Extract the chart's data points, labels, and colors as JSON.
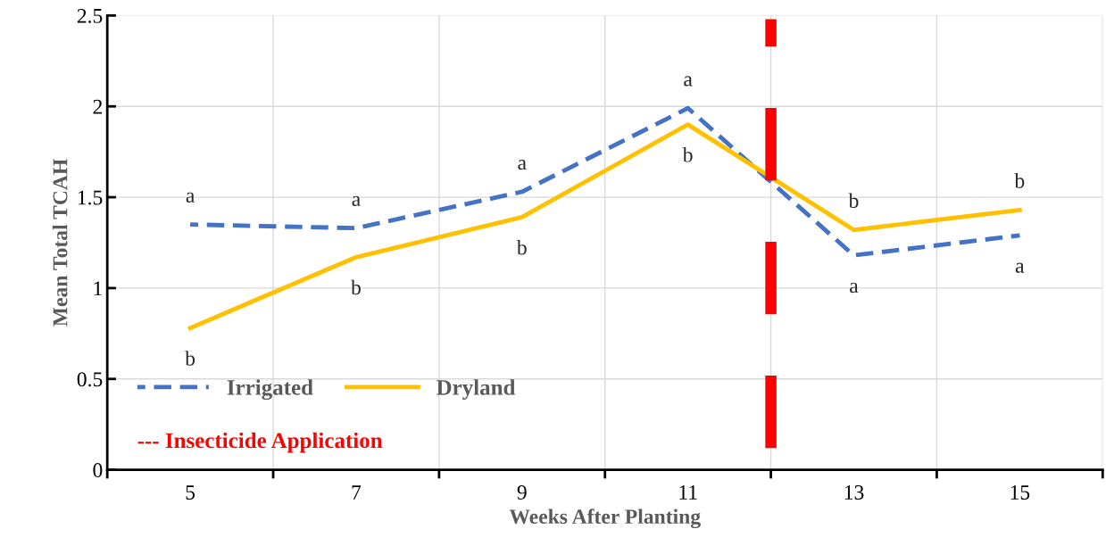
{
  "chart_data": {
    "type": "line",
    "xlabel": "Weeks After Planting",
    "ylabel": "Mean Total TCAH",
    "x": [
      5,
      7,
      9,
      11,
      13,
      15
    ],
    "series": [
      {
        "name": "Irrigated",
        "color": "#4472c4",
        "line_style": "dashed",
        "values": [
          1.35,
          1.33,
          1.53,
          1.99,
          1.18,
          1.29
        ]
      },
      {
        "name": "Dryland",
        "color": "#ffc000",
        "line_style": "solid",
        "values": [
          0.78,
          1.17,
          1.39,
          1.9,
          1.32,
          1.43
        ]
      }
    ],
    "xlim": [
      4,
      16
    ],
    "xticks": [
      {
        "value": 4,
        "label": null
      },
      5,
      {
        "value": 6,
        "label": null
      },
      7,
      {
        "value": 8,
        "label": null
      },
      9,
      {
        "value": 10,
        "label": null
      },
      11,
      {
        "value": 12,
        "label": null
      },
      13,
      {
        "value": 14,
        "label": null
      },
      15,
      {
        "value": 16,
        "label": null
      }
    ],
    "ylim": [
      0,
      2.5
    ],
    "yticks": [
      0,
      0.5,
      1,
      1.5,
      2,
      2.5
    ],
    "grid": true,
    "legend": "bottom left",
    "marker": "none",
    "ref_lines": [
      {
        "axis": "x",
        "value": 12,
        "label": "--- Insecticide Application",
        "color": "#ff0000",
        "line_style": "dashed"
      }
    ],
    "annotations": [
      {
        "text": "a",
        "x": 5,
        "y": 1.35
      },
      {
        "text": "b",
        "x": 5,
        "y": 0.78
      },
      {
        "text": "a",
        "x": 7,
        "y": 1.33
      },
      {
        "text": "b",
        "x": 7,
        "y": 1.17
      },
      {
        "text": "a",
        "x": 9,
        "y": 1.53
      },
      {
        "text": "b",
        "x": 9,
        "y": 1.39
      },
      {
        "text": "a",
        "x": 11,
        "y": 1.99
      },
      {
        "text": "b",
        "x": 11,
        "y": 1.9
      },
      {
        "text": "b",
        "x": 13,
        "y": 1.32
      },
      {
        "text": "a",
        "x": 13,
        "y": 1.18
      },
      {
        "text": "b",
        "x": 15,
        "y": 1.43
      },
      {
        "text": "a",
        "x": 15,
        "y": 1.29
      }
    ]
  }
}
